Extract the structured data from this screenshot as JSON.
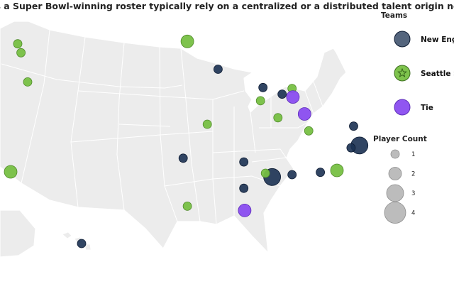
{
  "title": "Does a Super Bowl-winning roster typically rely on a centralized or a distributed talent origin network?",
  "colors": {
    "land": "#ececec",
    "border": "#ffffff",
    "new_england": "#1b3152",
    "seattle": "#77c043",
    "tie": "#8a4df0",
    "count_marker": "#b0b0b0"
  },
  "legend": {
    "teams_title": "Teams",
    "teams": [
      {
        "label": "New England Patriots",
        "color_key": "new_england",
        "icon": "circle-icon"
      },
      {
        "label": "Seattle Seahawks",
        "color_key": "seattle",
        "icon": "star-icon"
      },
      {
        "label": "Tie",
        "color_key": "tie",
        "icon": "circle-icon"
      }
    ],
    "count_title": "Player Count",
    "counts": [
      {
        "label": "1",
        "value": 1
      },
      {
        "label": "2",
        "value": 2
      },
      {
        "label": "3",
        "value": 3
      },
      {
        "label": "4",
        "value": 4
      }
    ]
  },
  "chart_data": {
    "type": "scatter",
    "map_projection": "albers-usa",
    "points": [
      {
        "team": "seattle",
        "count": 2,
        "lon": -118.25,
        "lat": 34.05
      },
      {
        "team": "new_england",
        "count": 1,
        "lon": -122.0,
        "lat": 45.5
      },
      {
        "team": "seattle",
        "count": 1,
        "lon": -117.4,
        "lat": 47.65
      },
      {
        "team": "seattle",
        "count": 1,
        "lon": -117.0,
        "lat": 46.7
      },
      {
        "team": "seattle",
        "count": 1,
        "lon": -116.2,
        "lat": 43.6
      },
      {
        "team": "seattle",
        "count": 2,
        "lon": -97.0,
        "lat": 47.9
      },
      {
        "team": "new_england",
        "count": 1,
        "lon": -93.3,
        "lat": 44.95
      },
      {
        "team": "seattle",
        "count": 1,
        "lon": -94.6,
        "lat": 39.1
      },
      {
        "team": "new_england",
        "count": 1,
        "lon": -87.9,
        "lat": 43.0
      },
      {
        "team": "seattle",
        "count": 1,
        "lon": -88.2,
        "lat": 41.6
      },
      {
        "team": "seattle",
        "count": 1,
        "lon": -84.4,
        "lat": 42.9
      },
      {
        "team": "new_england",
        "count": 1,
        "lon": -85.6,
        "lat": 42.3
      },
      {
        "team": "seattle",
        "count": 1,
        "lon": -86.1,
        "lat": 39.8
      },
      {
        "team": "tie",
        "count": 2,
        "lon": -84.3,
        "lat": 42.0
      },
      {
        "team": "tie",
        "count": 2,
        "lon": -82.9,
        "lat": 40.2
      },
      {
        "team": "seattle",
        "count": 1,
        "lon": -82.4,
        "lat": 38.4
      },
      {
        "team": "new_england",
        "count": 1,
        "lon": -77.0,
        "lat": 38.9
      },
      {
        "team": "new_england",
        "count": 3,
        "lon": -76.3,
        "lat": 36.85
      },
      {
        "team": "new_england",
        "count": 1,
        "lon": -77.3,
        "lat": 36.6
      },
      {
        "team": "seattle",
        "count": 2,
        "lon": -79.0,
        "lat": 34.2
      },
      {
        "team": "new_england",
        "count": 1,
        "lon": -81.0,
        "lat": 34.0
      },
      {
        "team": "new_england",
        "count": 1,
        "lon": -84.4,
        "lat": 33.75
      },
      {
        "team": "new_england",
        "count": 3,
        "lon": -86.8,
        "lat": 33.5
      },
      {
        "team": "seattle",
        "count": 1,
        "lon": -87.6,
        "lat": 33.9
      },
      {
        "team": "new_england",
        "count": 1,
        "lon": -90.2,
        "lat": 35.1
      },
      {
        "team": "new_england",
        "count": 1,
        "lon": -90.2,
        "lat": 32.3
      },
      {
        "team": "tie",
        "count": 2,
        "lon": -90.1,
        "lat": 29.95
      },
      {
        "team": "new_england",
        "count": 1,
        "lon": -97.5,
        "lat": 35.5
      },
      {
        "team": "seattle",
        "count": 1,
        "lon": -97.0,
        "lat": 30.4
      },
      {
        "team": "new_england",
        "count": 1,
        "lon": -158.0,
        "lat": 21.3
      }
    ]
  }
}
